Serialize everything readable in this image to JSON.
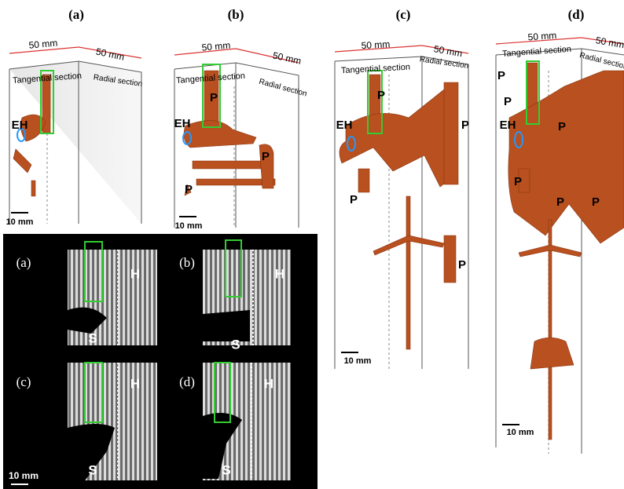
{
  "panels": [
    {
      "label": "(a)",
      "width_label": "50 mm",
      "depth_label": "50 mm",
      "face_left": "Tangential section",
      "face_right": "Radial section",
      "markers": [
        "EH"
      ],
      "scale": "10 mm"
    },
    {
      "label": "(b)",
      "width_label": "50 mm",
      "depth_label": "50 mm",
      "face_left": "Tangential section",
      "face_right": "Radial section",
      "markers": [
        "EH",
        "P",
        "P",
        "P"
      ],
      "scale": "10 mm"
    },
    {
      "label": "(c)",
      "width_label": "50 mm",
      "depth_label": "50 mm",
      "face_left": "Tangential section",
      "face_right": "Radial section",
      "markers": [
        "EH",
        "P",
        "P",
        "P",
        "P"
      ],
      "scale": "10 mm"
    },
    {
      "label": "(d)",
      "width_label": "50 mm",
      "depth_label": "50 mm",
      "face_left": "Tangential section",
      "face_right": "Radial section",
      "markers": [
        "P",
        "P",
        "EH",
        "P",
        "P",
        "P",
        "P"
      ],
      "scale": "10 mm"
    }
  ],
  "inset": {
    "panels": [
      {
        "label": "(a)",
        "h": "H",
        "s": "S"
      },
      {
        "label": "(b)",
        "h": "H",
        "s": "S"
      },
      {
        "label": "(c)",
        "h": "H",
        "s": "S"
      },
      {
        "label": "(d)",
        "h": "H",
        "s": "S"
      }
    ],
    "scale": "10 mm"
  }
}
